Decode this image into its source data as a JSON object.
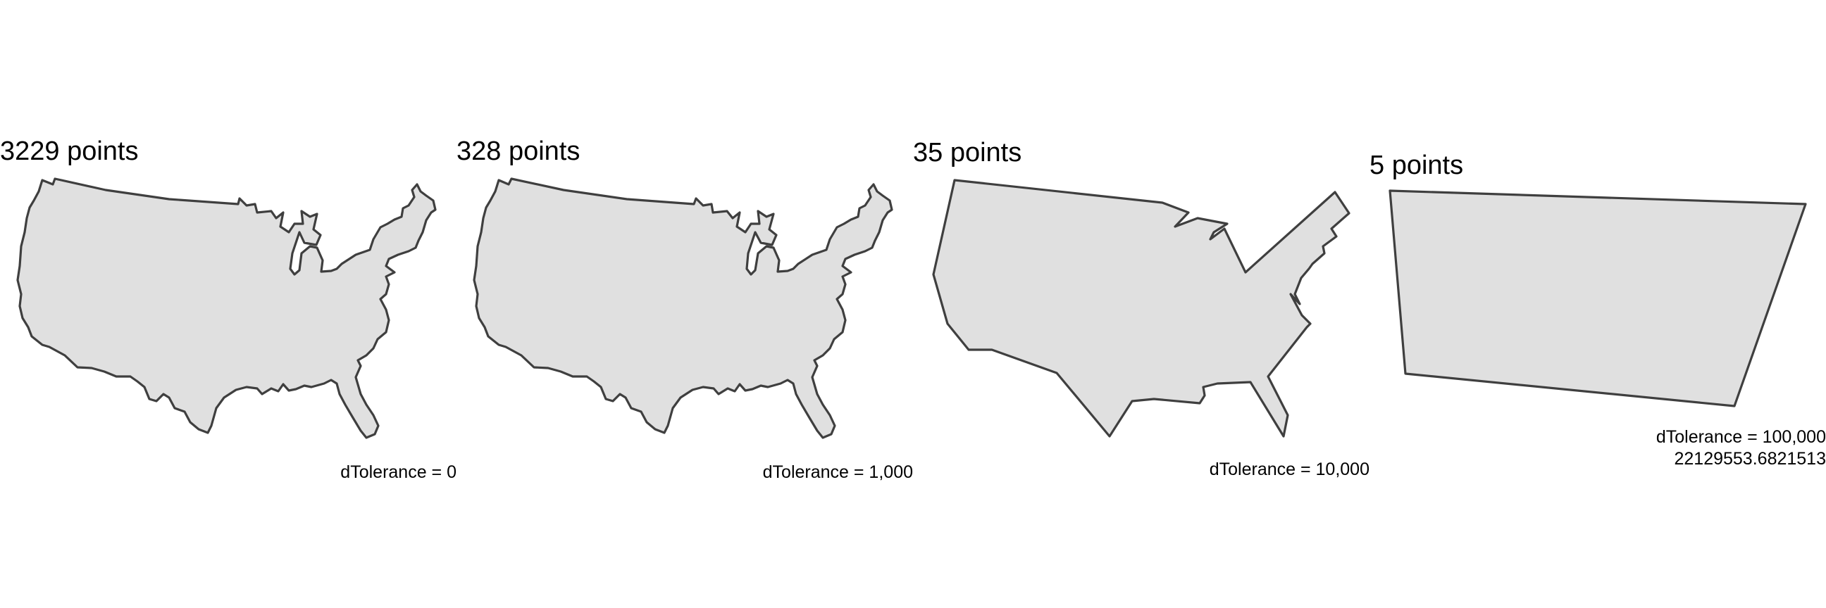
{
  "panels": [
    {
      "title": "3229 points",
      "caption": "dTolerance = 0"
    },
    {
      "title": "328 points",
      "caption": "dTolerance = 1,000"
    },
    {
      "title": "35 points",
      "caption": "dTolerance = 10,000"
    },
    {
      "title": "5 points",
      "caption": "dTolerance = 100,000",
      "caption2": "22129553.6821513"
    }
  ],
  "colors": {
    "land_fill": "#e0e0e0",
    "outline": "#3f3f3f",
    "background": "#ffffff"
  }
}
